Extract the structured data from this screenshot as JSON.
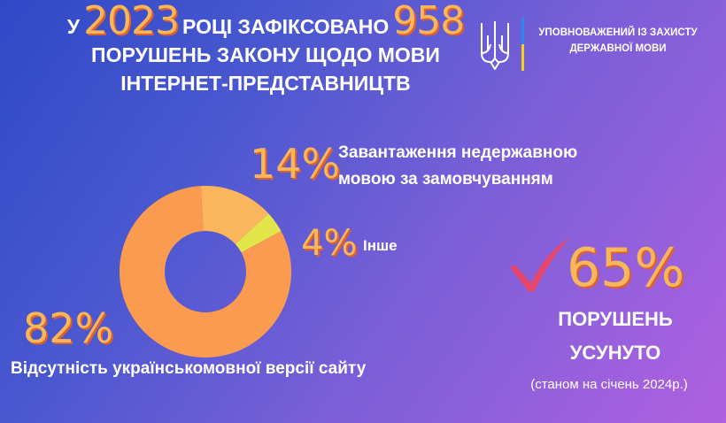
{
  "headline": {
    "prefix": "У",
    "year": "2023",
    "middle": "РОЦІ ЗАФІКСОВАНО",
    "count": "958",
    "line2": "ПОРУШЕНЬ ЗАКОНУ ЩОДО МОВИ",
    "line3": "ІНТЕРНЕТ-ПРЕДСТАВНИЦТВ"
  },
  "org": {
    "line1": "УПОВНОВАЖЕНИЙ ІЗ ЗАХИСТУ",
    "line2": "ДЕРЖАВНОЇ МОВИ"
  },
  "chart_data": {
    "type": "pie",
    "donut": true,
    "categories": [
      "Відсутність україномовної версії сайту",
      "Завантаження недержавною мовою за замовчуванням",
      "Інше"
    ],
    "values": [
      82,
      14,
      4
    ],
    "labels": [
      "82%",
      "14%",
      "4%"
    ],
    "colors": [
      "#fb9b4f",
      "#fbb65d",
      "#e3e64a"
    ],
    "slice_captions": {
      "main": "Відсутність українськомовної версії сайту",
      "second_line1": "Завантаження недержавною",
      "second_line2": "мовою за замовчуванням",
      "third": "Інше"
    }
  },
  "resolved": {
    "percent": "65%",
    "line1": "ПОРУШЕНЬ",
    "line2": "УСУНУТО",
    "note": "(станом на січень 2024р.)"
  },
  "colors": {
    "accent_orange": "#f9b75b",
    "accent_shadow": "#e0602c",
    "check_red": "#e8456a",
    "flag_blue": "#2a8cf0",
    "flag_yellow": "#f7d117"
  }
}
